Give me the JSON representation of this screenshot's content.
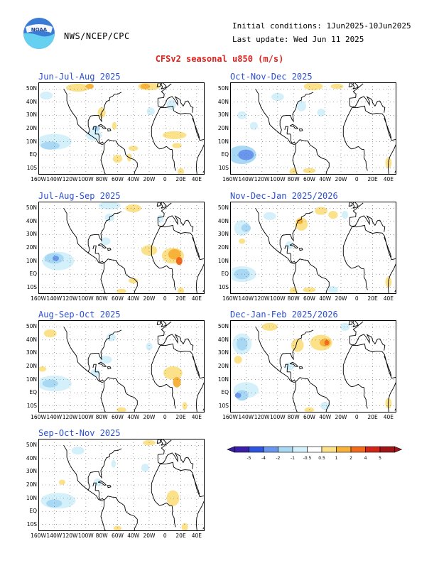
{
  "header": {
    "logo_text": "NOAA",
    "org": "NWS/NCEP/CPC",
    "initial_conditions": "Initial conditions: 1Jun2025-10Jun2025",
    "last_update": "Last update: Wed Jun 11 2025",
    "title": "CFSv2 seasonal u850 (m/s)"
  },
  "axes": {
    "lat_labels": [
      "50N",
      "40N",
      "30N",
      "20N",
      "10N",
      "EQ",
      "10S"
    ],
    "lon_labels": [
      "160W",
      "140W",
      "120W",
      "100W",
      "80W",
      "60W",
      "40W",
      "20W",
      "0",
      "20E",
      "40E"
    ]
  },
  "panels": [
    {
      "title": "Jun-Jul-Aug 2025"
    },
    {
      "title": "Oct-Nov-Dec 2025"
    },
    {
      "title": "Jul-Aug-Sep 2025"
    },
    {
      "title": "Nov-Dec-Jan 2025/2026"
    },
    {
      "title": "Aug-Sep-Oct 2025"
    },
    {
      "title": "Dec-Jan-Feb 2025/2026"
    },
    {
      "title": "Sep-Oct-Nov 2025"
    }
  ],
  "legend": {
    "labels": [
      "-5",
      "-4",
      "-2",
      "-1",
      "-0.5",
      "0.5",
      "1",
      "2",
      "4",
      "5"
    ],
    "colors": [
      "#3b1fa8",
      "#2f54e0",
      "#6a96ee",
      "#a8d8f3",
      "#d4f0fa",
      "#ffffff",
      "#fbe28a",
      "#f7b23b",
      "#f26b1c",
      "#d2261b",
      "#a0151a"
    ]
  },
  "colors": {
    "title": "#e0231f",
    "panel_title": "#2d50d0"
  }
}
